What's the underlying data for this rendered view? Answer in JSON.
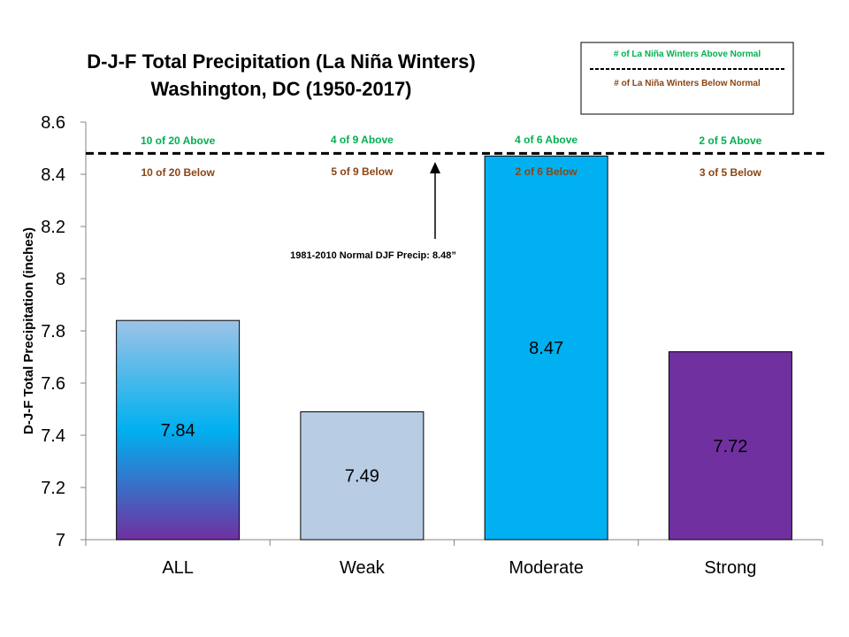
{
  "colors": {
    "above": "#00B050",
    "below": "#8B4513",
    "normal_line": "#000000"
  },
  "legend": {
    "above_text": "# of La Niña Winters Above Normal",
    "below_text": "# of La Niña Winters Below Normal"
  },
  "normal_annotation": "1981-2010  Normal DJF Precip: 8.48”",
  "chart_data": {
    "type": "bar",
    "title_lines": [
      "D-J-F Total  Precipitation (La Niña Winters)",
      "Washington, DC (1950-2017)"
    ],
    "xlabel": "",
    "ylabel": "D-J-F Total Precipitation (inches)",
    "ylim": [
      7,
      8.6
    ],
    "yticks": [
      7,
      7.2,
      7.4,
      7.6,
      7.8,
      8,
      8.2,
      8.4,
      8.6
    ],
    "ytick_labels": [
      "7",
      "7.2",
      "7.4",
      "7.6",
      "7.8",
      "8",
      "8.2",
      "8.4",
      "8.6"
    ],
    "categories": [
      "ALL",
      "Weak",
      "Moderate",
      "Strong"
    ],
    "values": [
      7.84,
      7.49,
      8.47,
      7.72
    ],
    "value_labels": [
      "7.84",
      "7.49",
      "8.47",
      "7.72"
    ],
    "bar_fills": [
      "gradient-blue-purple",
      "#B8CCE4",
      "#00B0F0",
      "#7030A0"
    ],
    "normal_value": 8.48,
    "counts_above": [
      "10 of 20 Above",
      "4 of 9 Above",
      "4 of 6 Above",
      "2 of 5 Above"
    ],
    "counts_below": [
      "10 of 20 Below",
      "5 of 9 Below",
      "2 of 6 Below",
      "3 of 5 Below"
    ],
    "grid": false,
    "legend_position": "top-right"
  }
}
